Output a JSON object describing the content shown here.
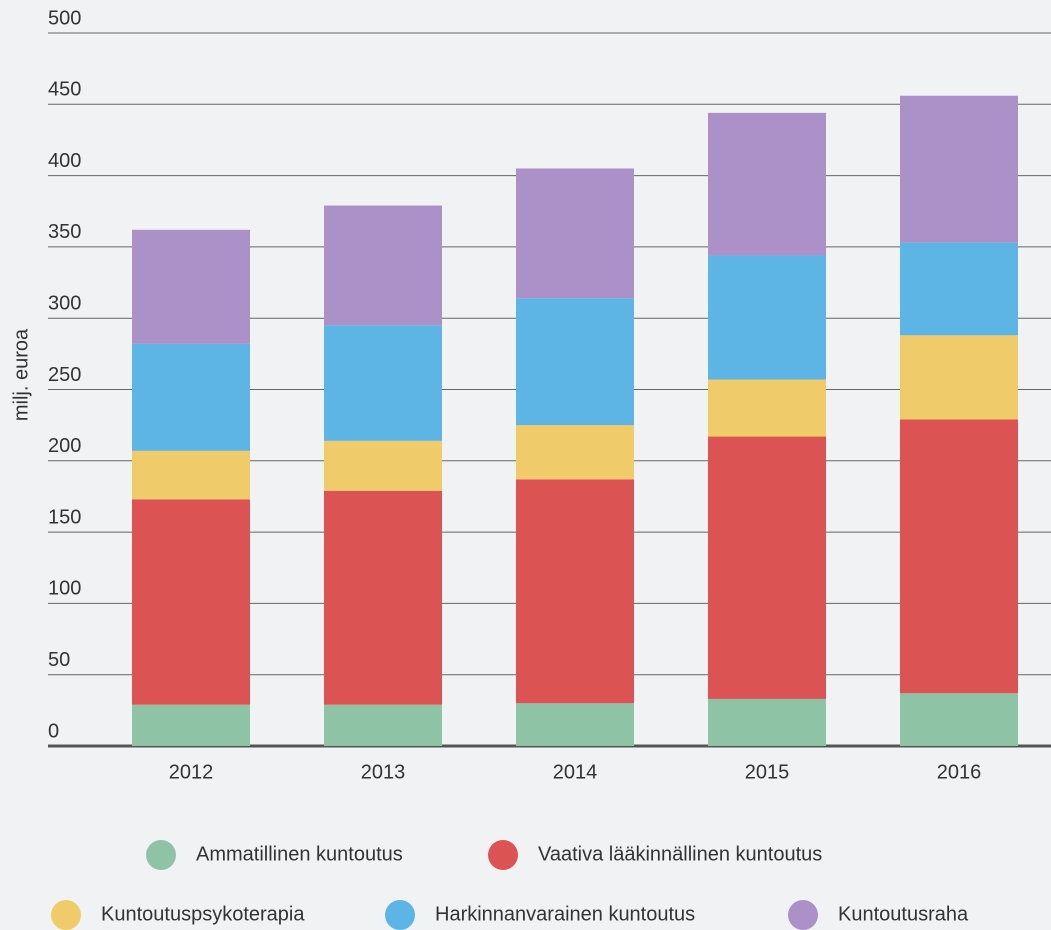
{
  "chart_data": {
    "type": "stacked_bar",
    "y_label": "milj. euroa",
    "categories": [
      "2012",
      "2013",
      "2014",
      "2015",
      "2016"
    ],
    "series": [
      {
        "name": "Ammatillinen kuntoutus",
        "color": "#8ec4a5",
        "values": [
          29,
          29,
          30,
          33,
          37
        ]
      },
      {
        "name": "Vaativa lääkinnällinen kuntoutus",
        "color": "#dc5354",
        "values": [
          144,
          150,
          157,
          184,
          192
        ]
      },
      {
        "name": "Kuntoutuspsykoterapia",
        "color": "#f0cb69",
        "values": [
          34,
          35,
          38,
          40,
          59
        ]
      },
      {
        "name": "Harkinnanvarainen kuntoutus",
        "color": "#5cb5e4",
        "values": [
          75,
          81,
          89,
          87,
          65
        ]
      },
      {
        "name": "Kuntoutusraha",
        "color": "#ab91c8",
        "values": [
          80,
          84,
          91,
          100,
          103
        ]
      }
    ],
    "ylim": [
      0,
      500
    ],
    "yticks": [
      0,
      50,
      100,
      150,
      200,
      250,
      300,
      350,
      400,
      450,
      500
    ],
    "grid": true
  }
}
